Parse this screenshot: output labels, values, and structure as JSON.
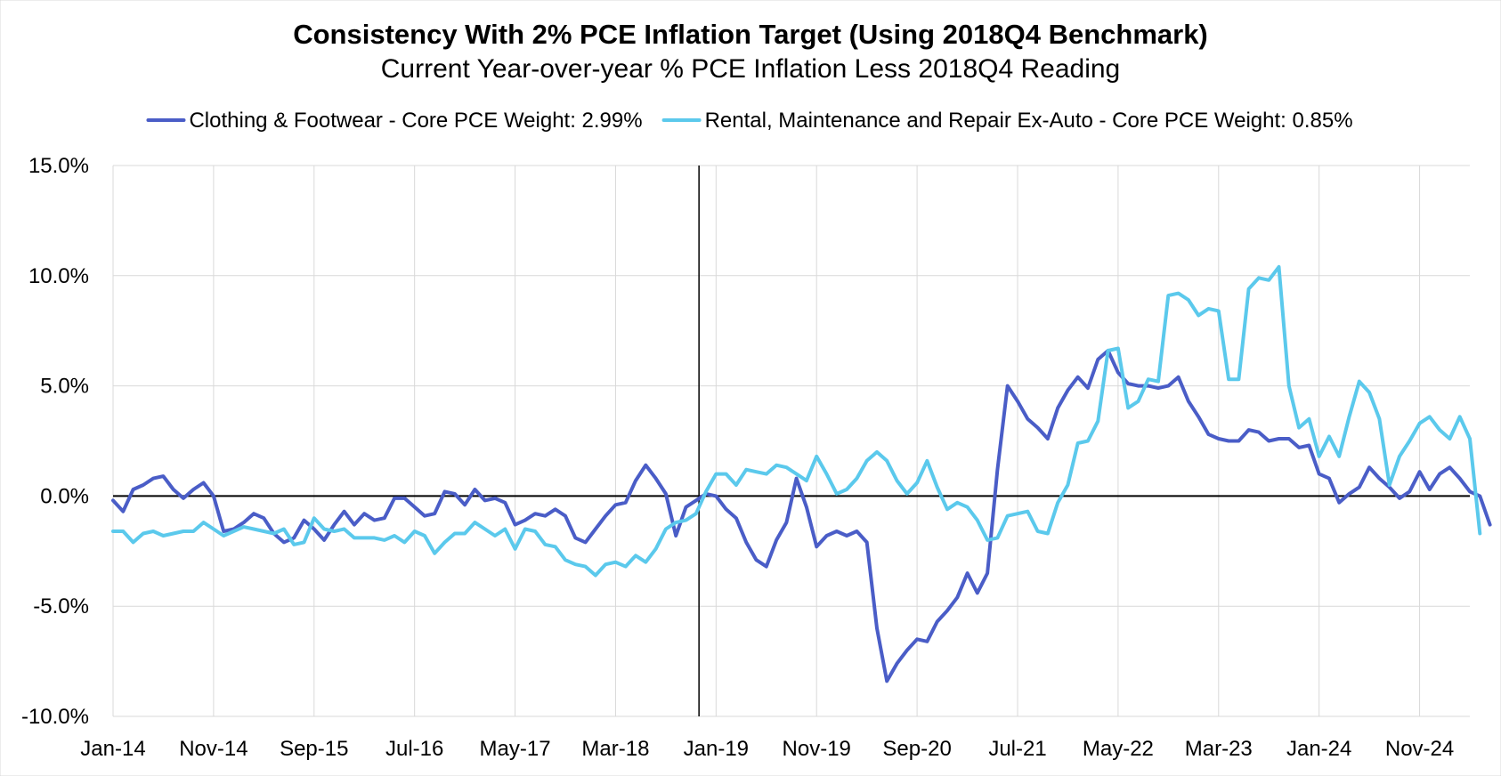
{
  "chart_data": {
    "type": "line",
    "title": "Consistency With 2% PCE Inflation Target (Using 2018Q4 Benchmark)",
    "subtitle": "Current Year-over-year % PCE Inflation Less 2018Q4 Reading",
    "xlabel": "",
    "ylabel": "",
    "ylim": [
      -10,
      15
    ],
    "y_ticks": [
      {
        "value": 15,
        "label": "15.0%"
      },
      {
        "value": 10,
        "label": "10.0%"
      },
      {
        "value": 5,
        "label": "5.0%"
      },
      {
        "value": 0,
        "label": "0.0%"
      },
      {
        "value": -5,
        "label": "-5.0%"
      },
      {
        "value": -10,
        "label": "-10.0%"
      }
    ],
    "x_start": "Jan-14",
    "x_count": 136,
    "x_ticks": [
      {
        "index": 0,
        "label": "Jan-14"
      },
      {
        "index": 10,
        "label": "Nov-14"
      },
      {
        "index": 20,
        "label": "Sep-15"
      },
      {
        "index": 30,
        "label": "Jul-16"
      },
      {
        "index": 40,
        "label": "May-17"
      },
      {
        "index": 50,
        "label": "Mar-18"
      },
      {
        "index": 60,
        "label": "Jan-19"
      },
      {
        "index": 70,
        "label": "Nov-19"
      },
      {
        "index": 80,
        "label": "Sep-20"
      },
      {
        "index": 90,
        "label": "Jul-21"
      },
      {
        "index": 100,
        "label": "May-22"
      },
      {
        "index": 110,
        "label": "Mar-23"
      },
      {
        "index": 120,
        "label": "Jan-24"
      },
      {
        "index": 130,
        "label": "Nov-24"
      }
    ],
    "benchmark_index": 58,
    "grid": true,
    "legend_position": "top",
    "series": [
      {
        "name": "Clothing & Footwear - Core PCE Weight: 2.99%",
        "color": "#4a5dc7",
        "values": [
          -0.2,
          -0.7,
          0.3,
          0.5,
          0.8,
          0.9,
          0.3,
          -0.1,
          0.3,
          0.6,
          0.0,
          -1.6,
          -1.5,
          -1.2,
          -0.8,
          -1.0,
          -1.7,
          -2.1,
          -1.9,
          -1.1,
          -1.5,
          -2.0,
          -1.3,
          -0.7,
          -1.3,
          -0.8,
          -1.1,
          -1.0,
          -0.1,
          -0.1,
          -0.5,
          -0.9,
          -0.8,
          0.2,
          0.1,
          -0.4,
          0.3,
          -0.2,
          -0.1,
          -0.3,
          -1.3,
          -1.1,
          -0.8,
          -0.9,
          -0.6,
          -0.9,
          -1.9,
          -2.1,
          -1.5,
          -0.9,
          -0.4,
          -0.3,
          0.7,
          1.4,
          0.8,
          0.1,
          -1.8,
          -0.5,
          -0.2,
          0.1,
          0.0,
          -0.6,
          -1.0,
          -2.1,
          -2.9,
          -3.2,
          -2.0,
          -1.2,
          0.8,
          -0.5,
          -2.3,
          -1.8,
          -1.6,
          -1.8,
          -1.6,
          -2.1,
          -6.0,
          -8.4,
          -7.6,
          -7.0,
          -6.5,
          -6.6,
          -5.7,
          -5.2,
          -4.6,
          -3.5,
          -4.4,
          -3.5,
          1.2,
          5.0,
          4.3,
          3.5,
          3.1,
          2.6,
          4.0,
          4.8,
          5.4,
          4.9,
          6.2,
          6.6,
          5.6,
          5.1,
          5.0,
          5.0,
          4.9,
          5.0,
          5.4,
          4.3,
          3.6,
          2.8,
          2.6,
          2.5,
          2.5,
          3.0,
          2.9,
          2.5,
          2.6,
          2.6,
          2.2,
          2.3,
          1.0,
          0.8,
          -0.3,
          0.1,
          0.4,
          1.3,
          0.8,
          0.4,
          -0.1,
          0.2,
          1.1,
          0.3,
          1.0,
          1.3,
          0.8,
          0.2,
          0.0,
          -1.3
        ]
      },
      {
        "name": "Rental, Maintenance and Repair Ex-Auto - Core PCE Weight: 0.85%",
        "color": "#5bc9ec",
        "values": [
          -1.6,
          -1.6,
          -2.1,
          -1.7,
          -1.6,
          -1.8,
          -1.7,
          -1.6,
          -1.6,
          -1.2,
          -1.5,
          -1.8,
          -1.6,
          -1.4,
          -1.5,
          -1.6,
          -1.7,
          -1.5,
          -2.2,
          -2.1,
          -1.0,
          -1.5,
          -1.6,
          -1.5,
          -1.9,
          -1.9,
          -1.9,
          -2.0,
          -1.8,
          -2.1,
          -1.6,
          -1.8,
          -2.6,
          -2.1,
          -1.7,
          -1.7,
          -1.2,
          -1.5,
          -1.8,
          -1.5,
          -2.4,
          -1.5,
          -1.6,
          -2.2,
          -2.3,
          -2.9,
          -3.1,
          -3.2,
          -3.6,
          -3.1,
          -3.0,
          -3.2,
          -2.7,
          -3.0,
          -2.4,
          -1.5,
          -1.2,
          -1.1,
          -0.8,
          0.2,
          1.0,
          1.0,
          0.5,
          1.2,
          1.1,
          1.0,
          1.4,
          1.3,
          1.0,
          0.7,
          1.8,
          1.0,
          0.1,
          0.3,
          0.8,
          1.6,
          2.0,
          1.6,
          0.7,
          0.1,
          0.6,
          1.6,
          0.4,
          -0.6,
          -0.3,
          -0.5,
          -1.1,
          -2.0,
          -1.9,
          -0.9,
          -0.8,
          -0.7,
          -1.6,
          -1.7,
          -0.3,
          0.5,
          2.4,
          2.5,
          3.4,
          6.6,
          6.7,
          4.0,
          4.3,
          5.3,
          5.2,
          9.1,
          9.2,
          8.9,
          8.2,
          8.5,
          8.4,
          5.3,
          5.3,
          9.4,
          9.9,
          9.8,
          10.4,
          5.0,
          3.1,
          3.5,
          1.8,
          2.7,
          1.8,
          3.6,
          5.2,
          4.7,
          3.5,
          0.5,
          1.8,
          2.5,
          3.3,
          3.6,
          3.0,
          2.6,
          3.6,
          2.6,
          -1.7
        ]
      }
    ]
  }
}
